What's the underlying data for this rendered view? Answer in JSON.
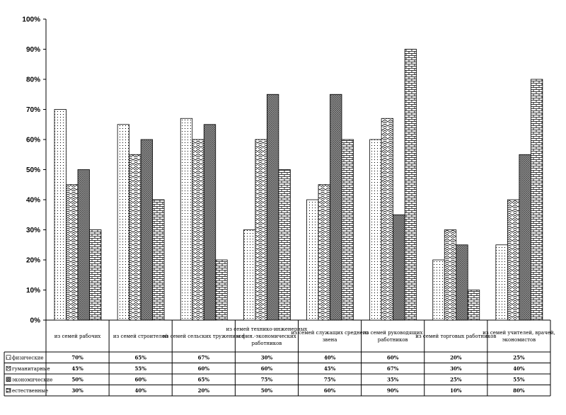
{
  "chart_data": {
    "type": "bar",
    "title": "",
    "xlabel": "",
    "ylabel": "",
    "ylim": [
      0,
      100
    ],
    "y_ticks": [
      "0%",
      "10%",
      "20%",
      "30%",
      "40%",
      "50%",
      "60%",
      "70%",
      "80%",
      "90%",
      "100%"
    ],
    "grid": false,
    "legend_placement": "left of data table",
    "categories": [
      "из семей рабочих",
      "из семей строителей",
      "из семей сельских тружеников",
      "из семей технико-инженерных и фин.-экономических работников",
      "из семей служащих среднего звена",
      "из семей руководящих работников",
      "из семей торговых работников",
      "из семей учителей, врачей, экономистов"
    ],
    "series": [
      {
        "name": "физические",
        "pattern": "dots",
        "values": [
          70,
          65,
          67,
          30,
          40,
          60,
          20,
          25
        ],
        "labels": [
          "70%",
          "65%",
          "67%",
          "30%",
          "40%",
          "60%",
          "20%",
          "25%"
        ]
      },
      {
        "name": "гуманитарные",
        "pattern": "zigzag",
        "values": [
          45,
          55,
          60,
          60,
          45,
          67,
          30,
          40
        ],
        "labels": [
          "45%",
          "55%",
          "60%",
          "60%",
          "45%",
          "67%",
          "30%",
          "40%"
        ]
      },
      {
        "name": "экономические",
        "pattern": "grid",
        "values": [
          50,
          60,
          65,
          75,
          75,
          35,
          25,
          55
        ],
        "labels": [
          "50%",
          "60%",
          "65%",
          "75%",
          "75%",
          "35%",
          "25%",
          "55%"
        ]
      },
      {
        "name": "естественные",
        "pattern": "brick",
        "values": [
          30,
          40,
          20,
          50,
          60,
          90,
          10,
          80
        ],
        "labels": [
          "30%",
          "40%",
          "20%",
          "50%",
          "60%",
          "90%",
          "10%",
          "80%"
        ]
      }
    ]
  }
}
